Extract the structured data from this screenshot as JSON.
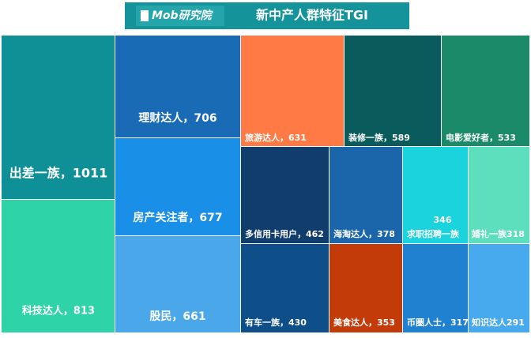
{
  "logo": "Mob研究院",
  "chart_data": {
    "type": "treemap",
    "title": "新中产人群特征TGI",
    "values": [
      1011,
      813,
      706,
      677,
      661,
      631,
      589,
      533,
      462,
      378,
      346,
      318,
      430,
      353,
      317,
      291
    ],
    "value_labels": [
      "出差一族，1011",
      "科技达人，813",
      "理财达人，706",
      "房产关注者，677",
      "股民，661",
      "旅游达人，631",
      "装修一族，589",
      "电影爱好者，533",
      "多信用卡用户，462",
      "海淘达人，378",
      [
        "346",
        "求职招聘一族"
      ],
      "婚礼一族318",
      "有车一族，430",
      "美食达人，353",
      "币圈人士，317",
      "知识达人291"
    ],
    "colors": [
      "#0f8f96",
      "#2fd3a8",
      "#1a6bb5",
      "#1a8fe8",
      "#4aa8ea",
      "#ff7a45",
      "#0a5b5b",
      "#1a8a68",
      "#103d6b",
      "#1b66aa",
      "#1bd3dc",
      "#5ddfbd",
      "#0e4f8a",
      "#c43b0a",
      "#2181d1",
      "#47a9ee"
    ]
  }
}
